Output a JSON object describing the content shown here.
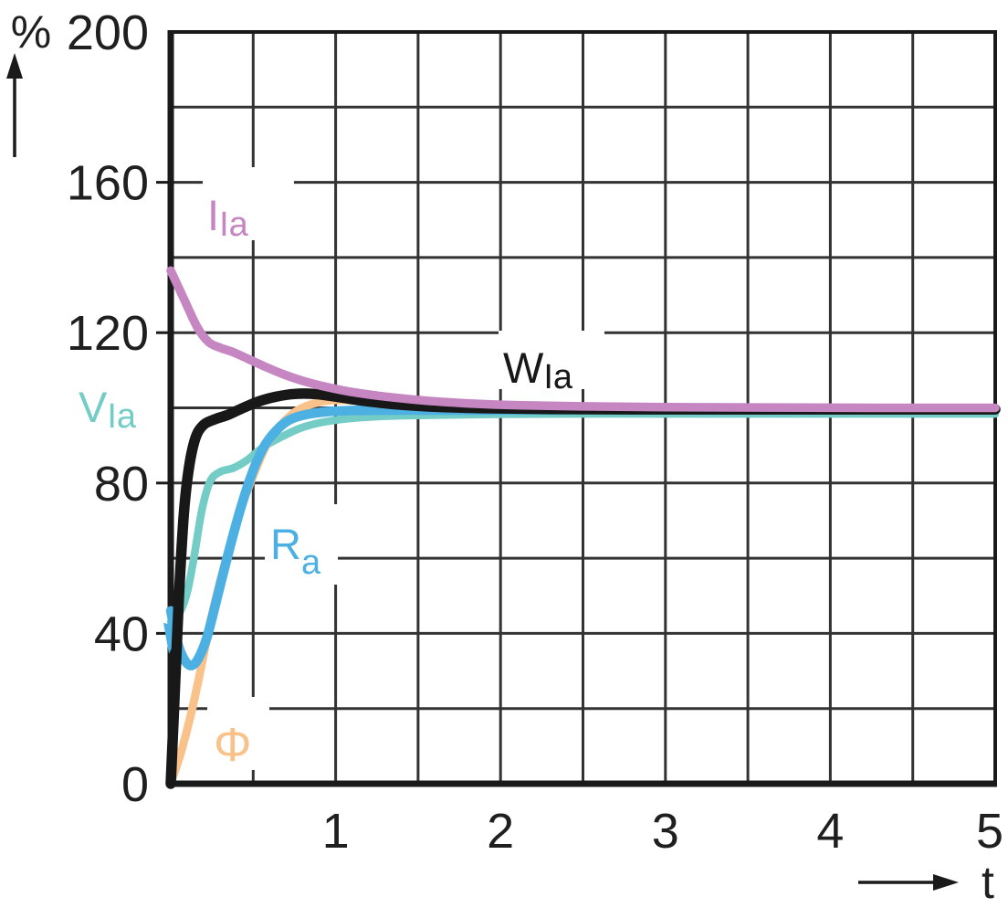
{
  "chart_data": {
    "type": "line",
    "title": "",
    "xlabel": "t",
    "ylabel": "%",
    "xlim": [
      0,
      5
    ],
    "ylim": [
      0,
      200
    ],
    "x_ticks": [
      1,
      2,
      3,
      4,
      5
    ],
    "y_ticks": [
      200,
      160,
      120,
      80,
      40,
      0
    ],
    "grid": {
      "on": true,
      "x_step": 0.5,
      "y_step": 20
    },
    "legend_position": "inline-labels",
    "colors": {
      "grid": "#333333",
      "axis": "#1a1a1a",
      "text": "#1f1f1f"
    },
    "series": [
      {
        "name": "VIa",
        "label_base": "V",
        "label_sub": "Ia",
        "color": "#74ccc6",
        "points": [
          [
            0,
            43
          ],
          [
            0.06,
            46
          ],
          [
            0.1,
            51
          ],
          [
            0.14,
            60
          ],
          [
            0.19,
            73
          ],
          [
            0.24,
            80.5
          ],
          [
            0.3,
            83
          ],
          [
            0.38,
            84
          ],
          [
            0.46,
            86
          ],
          [
            0.56,
            89.5
          ],
          [
            0.66,
            92
          ],
          [
            0.78,
            94.5
          ],
          [
            0.9,
            96
          ],
          [
            1.05,
            97
          ],
          [
            1.25,
            97.7
          ],
          [
            1.5,
            98
          ],
          [
            2,
            98.3
          ],
          [
            2.5,
            98.4
          ],
          [
            3,
            98.4
          ],
          [
            4,
            98.4
          ],
          [
            5,
            98.4
          ]
        ]
      },
      {
        "name": "Phi",
        "label_base": "Φ",
        "label_sub": "",
        "color": "#f9c28a",
        "points": [
          [
            0,
            0
          ],
          [
            0.06,
            8
          ],
          [
            0.12,
            18
          ],
          [
            0.18,
            30
          ],
          [
            0.24,
            43
          ],
          [
            0.3,
            54
          ],
          [
            0.37,
            65
          ],
          [
            0.44,
            75
          ],
          [
            0.51,
            83
          ],
          [
            0.58,
            90
          ],
          [
            0.66,
            95
          ],
          [
            0.75,
            98.8
          ],
          [
            0.85,
            100.9
          ],
          [
            0.95,
            101.9
          ],
          [
            1.1,
            102
          ],
          [
            1.3,
            101.3
          ],
          [
            1.55,
            100.6
          ],
          [
            1.9,
            100.1
          ],
          [
            2.4,
            99.9
          ],
          [
            3,
            99.9
          ],
          [
            4,
            99.9
          ],
          [
            5,
            99.9
          ]
        ]
      },
      {
        "name": "Ra",
        "label_base": "R",
        "label_sub": "a",
        "color": "#4cb1e2",
        "start_marker": "arrow-down",
        "points": [
          [
            0,
            46
          ],
          [
            0.045,
            37
          ],
          [
            0.09,
            32.5
          ],
          [
            0.13,
            31.5
          ],
          [
            0.17,
            33.5
          ],
          [
            0.22,
            39
          ],
          [
            0.27,
            47.5
          ],
          [
            0.33,
            58
          ],
          [
            0.39,
            68
          ],
          [
            0.45,
            77
          ],
          [
            0.51,
            84.5
          ],
          [
            0.57,
            90
          ],
          [
            0.64,
            94
          ],
          [
            0.72,
            96.8
          ],
          [
            0.82,
            98.2
          ],
          [
            0.95,
            99
          ],
          [
            1.1,
            99.3
          ],
          [
            1.4,
            99.4
          ],
          [
            1.8,
            99.4
          ],
          [
            2.4,
            99.5
          ],
          [
            3.2,
            99.5
          ],
          [
            4,
            99.5
          ],
          [
            5,
            99.5
          ]
        ]
      },
      {
        "name": "WIa",
        "label_base": "W",
        "label_sub": "Ia",
        "color": "#181818",
        "points": [
          [
            0,
            0
          ],
          [
            0.025,
            25
          ],
          [
            0.05,
            50
          ],
          [
            0.08,
            72
          ],
          [
            0.11,
            84
          ],
          [
            0.15,
            92
          ],
          [
            0.2,
            95.5
          ],
          [
            0.27,
            97
          ],
          [
            0.35,
            98.2
          ],
          [
            0.44,
            100
          ],
          [
            0.54,
            101.8
          ],
          [
            0.64,
            103
          ],
          [
            0.75,
            103.7
          ],
          [
            0.87,
            103.7
          ],
          [
            1,
            103
          ],
          [
            1.15,
            102
          ],
          [
            1.35,
            101
          ],
          [
            1.6,
            100.3
          ],
          [
            1.9,
            99.9
          ],
          [
            2.3,
            99.7
          ],
          [
            2.8,
            99.6
          ],
          [
            3.5,
            99.6
          ],
          [
            4.2,
            99.6
          ],
          [
            5,
            99.6
          ]
        ]
      },
      {
        "name": "IIa",
        "label_base": "I",
        "label_sub": "Ia",
        "color": "#c586c2",
        "points": [
          [
            0,
            136.5
          ],
          [
            0.08,
            129
          ],
          [
            0.16,
            121.5
          ],
          [
            0.23,
            117.5
          ],
          [
            0.3,
            116
          ],
          [
            0.38,
            114.8
          ],
          [
            0.47,
            113
          ],
          [
            0.57,
            111
          ],
          [
            0.68,
            109
          ],
          [
            0.8,
            107.2
          ],
          [
            0.95,
            105.5
          ],
          [
            1.1,
            104.2
          ],
          [
            1.3,
            103
          ],
          [
            1.55,
            101.9
          ],
          [
            1.8,
            101.2
          ],
          [
            2.1,
            100.7
          ],
          [
            2.5,
            100.4
          ],
          [
            3,
            100.2
          ],
          [
            3.6,
            100.1
          ],
          [
            4.3,
            100
          ],
          [
            5,
            100
          ]
        ]
      }
    ]
  }
}
